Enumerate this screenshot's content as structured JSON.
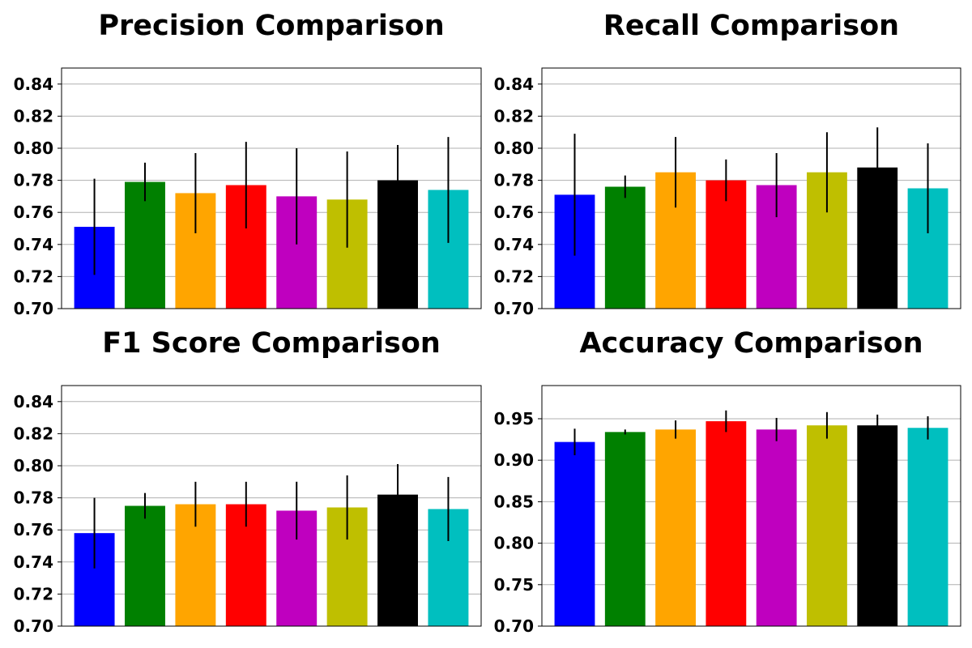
{
  "chart_data": [
    {
      "type": "bar",
      "title": "Precision Comparison",
      "xlabel": "",
      "ylabel": "",
      "ylim": [
        0.7,
        0.85
      ],
      "yticks": [
        "0.70",
        "0.72",
        "0.74",
        "0.76",
        "0.78",
        "0.80",
        "0.82",
        "0.84"
      ],
      "values": [
        0.751,
        0.779,
        0.772,
        0.777,
        0.77,
        0.768,
        0.78,
        0.774
      ],
      "errors": [
        0.03,
        0.012,
        0.025,
        0.027,
        0.03,
        0.03,
        0.022,
        0.033
      ],
      "colors": [
        "#0000ff",
        "#008000",
        "#ffa500",
        "#ff0000",
        "#bf00bf",
        "#bfbf00",
        "#000000",
        "#00bfbf"
      ],
      "grid": "y"
    },
    {
      "type": "bar",
      "title": "Recall Comparison",
      "xlabel": "",
      "ylabel": "",
      "ylim": [
        0.7,
        0.85
      ],
      "yticks": [
        "0.70",
        "0.72",
        "0.74",
        "0.76",
        "0.78",
        "0.80",
        "0.82",
        "0.84"
      ],
      "values": [
        0.771,
        0.776,
        0.785,
        0.78,
        0.777,
        0.785,
        0.788,
        0.775
      ],
      "errors": [
        0.038,
        0.007,
        0.022,
        0.013,
        0.02,
        0.025,
        0.025,
        0.028
      ],
      "colors": [
        "#0000ff",
        "#008000",
        "#ffa500",
        "#ff0000",
        "#bf00bf",
        "#bfbf00",
        "#000000",
        "#00bfbf"
      ],
      "grid": "y"
    },
    {
      "type": "bar",
      "title": "F1 Score Comparison",
      "xlabel": "",
      "ylabel": "",
      "ylim": [
        0.7,
        0.85
      ],
      "yticks": [
        "0.70",
        "0.72",
        "0.74",
        "0.76",
        "0.78",
        "0.80",
        "0.82",
        "0.84"
      ],
      "values": [
        0.758,
        0.775,
        0.776,
        0.776,
        0.772,
        0.774,
        0.782,
        0.773
      ],
      "errors": [
        0.022,
        0.008,
        0.014,
        0.014,
        0.018,
        0.02,
        0.019,
        0.02
      ],
      "colors": [
        "#0000ff",
        "#008000",
        "#ffa500",
        "#ff0000",
        "#bf00bf",
        "#bfbf00",
        "#000000",
        "#00bfbf"
      ],
      "grid": "y"
    },
    {
      "type": "bar",
      "title": "Accuracy Comparison",
      "xlabel": "",
      "ylabel": "",
      "ylim": [
        0.7,
        0.99
      ],
      "yticks": [
        "0.70",
        "0.75",
        "0.80",
        "0.85",
        "0.90",
        "0.95"
      ],
      "values": [
        0.922,
        0.934,
        0.937,
        0.947,
        0.937,
        0.942,
        0.942,
        0.939
      ],
      "errors": [
        0.016,
        0.003,
        0.011,
        0.013,
        0.014,
        0.016,
        0.013,
        0.014
      ],
      "colors": [
        "#0000ff",
        "#008000",
        "#ffa500",
        "#ff0000",
        "#bf00bf",
        "#bfbf00",
        "#000000",
        "#00bfbf"
      ],
      "grid": "y"
    }
  ]
}
